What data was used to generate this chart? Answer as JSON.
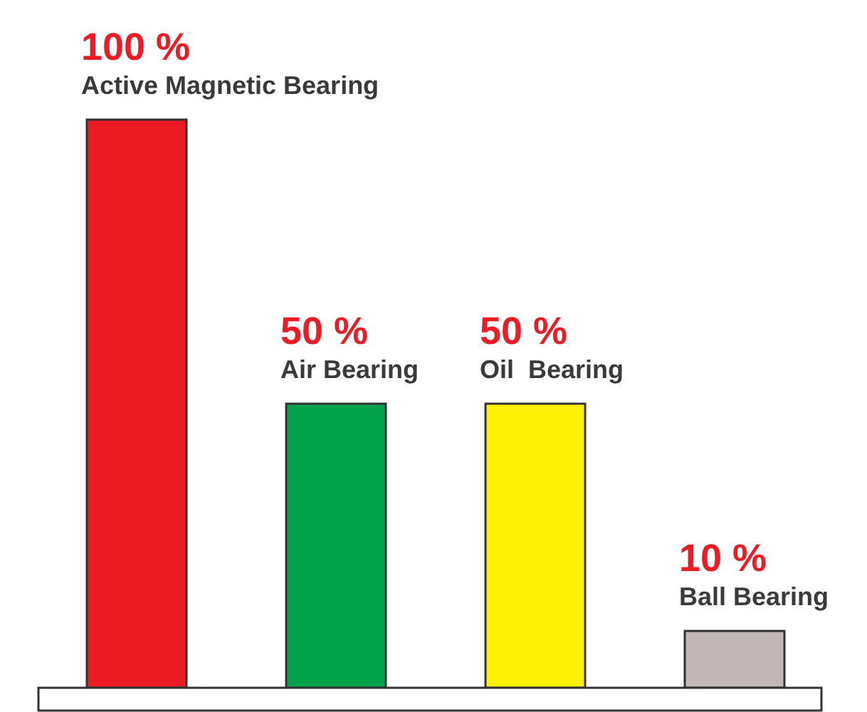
{
  "chart_data": {
    "type": "bar",
    "ylim": [
      0,
      100
    ],
    "tick_labels": false,
    "categories": [
      "Active Magnetic Bearing",
      "Air Bearing",
      "Oil  Bearing",
      "Ball Bearing"
    ],
    "values": [
      100,
      50,
      50,
      10
    ],
    "value_labels": [
      "100 %",
      "50 %",
      "50 %",
      "10 %"
    ],
    "colors": [
      "#ed1c24",
      "#00a14b",
      "#fff200",
      "#c2b8b5"
    ]
  }
}
